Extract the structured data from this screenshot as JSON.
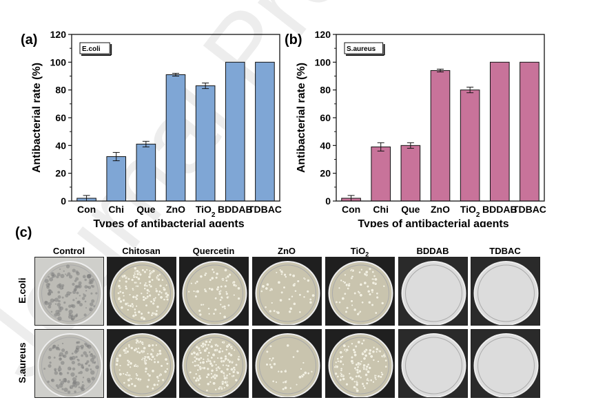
{
  "chart_data": [
    {
      "type": "bar",
      "panel": "(a)",
      "legend": "E.coli",
      "categories": [
        "Con",
        "Chi",
        "Que",
        "ZnO",
        "TiO2",
        "BDDAB",
        "TDBAC"
      ],
      "values": [
        2,
        32,
        41,
        91,
        83,
        100,
        100
      ],
      "errors": [
        2,
        3,
        2,
        1,
        2,
        0,
        0
      ],
      "xlabel": "Types of antibacterial agents",
      "ylabel": "Antibacterial rate (%)",
      "ylim": [
        0,
        120
      ],
      "yticks": [
        0,
        20,
        40,
        60,
        80,
        100,
        120
      ],
      "color": "#7fa6d5"
    },
    {
      "type": "bar",
      "panel": "(b)",
      "legend": "S.aureus",
      "categories": [
        "Con",
        "Chi",
        "Que",
        "ZnO",
        "TiO2",
        "BDDAB",
        "TDBAC"
      ],
      "values": [
        2,
        39,
        40,
        94,
        80,
        100,
        100
      ],
      "errors": [
        2,
        3,
        2,
        1,
        2,
        0,
        0
      ],
      "xlabel": "Types of antibacterial agents",
      "ylabel": "Antibacterial rate (%)",
      "ylim": [
        0,
        120
      ],
      "yticks": [
        0,
        20,
        40,
        60,
        80,
        100,
        120
      ],
      "color": "#c8739a"
    }
  ],
  "photo_panel": {
    "label": "(c)",
    "columns": [
      "Control",
      "Chitosan",
      "Quercetin",
      "ZnO",
      "TiO2",
      "BDDAB",
      "TDBAC"
    ],
    "rows": [
      "E.coli",
      "S.aureus"
    ]
  },
  "watermark": "Journal Pre-proof"
}
